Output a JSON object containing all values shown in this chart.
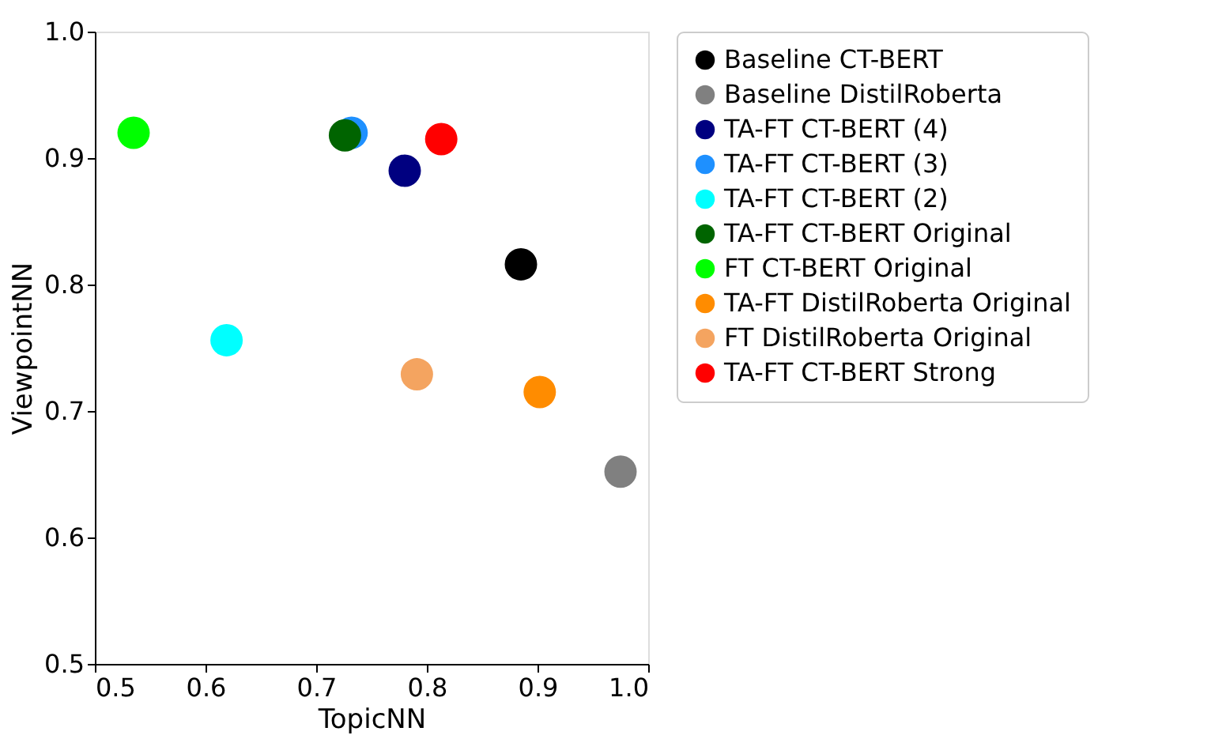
{
  "chart_data": {
    "type": "scatter",
    "xlabel": "TopicNN",
    "ylabel": "ViewpointNN",
    "xlim": [
      0.5,
      1.0
    ],
    "ylim": [
      0.5,
      1.0
    ],
    "xticks": [
      0.5,
      0.6,
      0.7,
      0.8,
      0.9,
      {
        "value": 1,
        "label": "1.0"
      }
    ],
    "yticks": [
      0.5,
      0.6,
      0.7,
      0.8,
      0.9,
      {
        "value": 1,
        "label": "1.0"
      }
    ],
    "grid": false,
    "legend": "right",
    "marker": "circle",
    "series": [
      {
        "name": "Baseline CT-BERT",
        "color": "#000000",
        "x": [
          0.885
        ],
        "values": [
          0.816
        ]
      },
      {
        "name": "Baseline DistilRoberta",
        "color": "#808080",
        "x": [
          0.975
        ],
        "values": [
          0.652
        ]
      },
      {
        "name": "TA-FT CT-BERT (4)",
        "color": "#000080",
        "x": [
          0.78
        ],
        "values": [
          0.89
        ]
      },
      {
        "name": "TA-FT CT-BERT (3)",
        "color": "#1e90ff",
        "x": [
          0.732
        ],
        "values": [
          0.92
        ]
      },
      {
        "name": "TA-FT CT-BERT (2)",
        "color": "#00ffff",
        "x": [
          0.619
        ],
        "values": [
          0.756
        ]
      },
      {
        "name": "TA-FT CT-BERT Original",
        "color": "#006400",
        "x": [
          0.726
        ],
        "values": [
          0.918
        ]
      },
      {
        "name": "FT CT-BERT Original",
        "color": "#00ff00",
        "x": [
          0.535
        ],
        "values": [
          0.92
        ]
      },
      {
        "name": "TA-FT DistilRoberta Original",
        "color": "#ff8c00",
        "x": [
          0.902
        ],
        "values": [
          0.715
        ]
      },
      {
        "name": "FT DistilRoberta Original",
        "color": "#f4a460",
        "x": [
          0.791
        ],
        "values": [
          0.729
        ]
      },
      {
        "name": "TA-FT CT-BERT Strong",
        "color": "#ff0000",
        "x": [
          0.813
        ],
        "values": [
          0.915
        ]
      }
    ]
  }
}
